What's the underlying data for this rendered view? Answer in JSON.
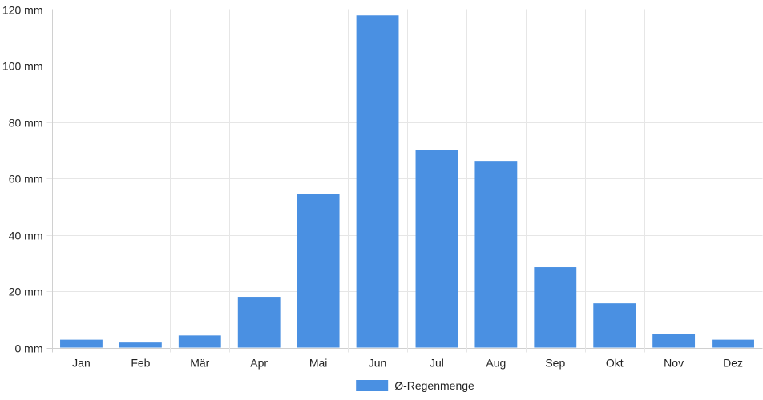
{
  "chart_data": {
    "type": "bar",
    "title": "",
    "xlabel": "",
    "ylabel": "",
    "categories": [
      "Jan",
      "Feb",
      "Mär",
      "Apr",
      "Mai",
      "Jun",
      "Jul",
      "Aug",
      "Sep",
      "Okt",
      "Nov",
      "Dez"
    ],
    "series": [
      {
        "name": "Ø-Regenmenge",
        "values": [
          2.8,
          1.8,
          4.3,
          18.0,
          54.5,
          117.8,
          70.2,
          66.2,
          28.5,
          15.7,
          4.8,
          2.8
        ],
        "color": "#4a90e2"
      }
    ],
    "ylim": [
      0,
      120
    ],
    "yticks": [
      0,
      20,
      40,
      60,
      80,
      100,
      120
    ],
    "y_unit": "mm",
    "grid": true,
    "legend_position": "bottom-center"
  }
}
